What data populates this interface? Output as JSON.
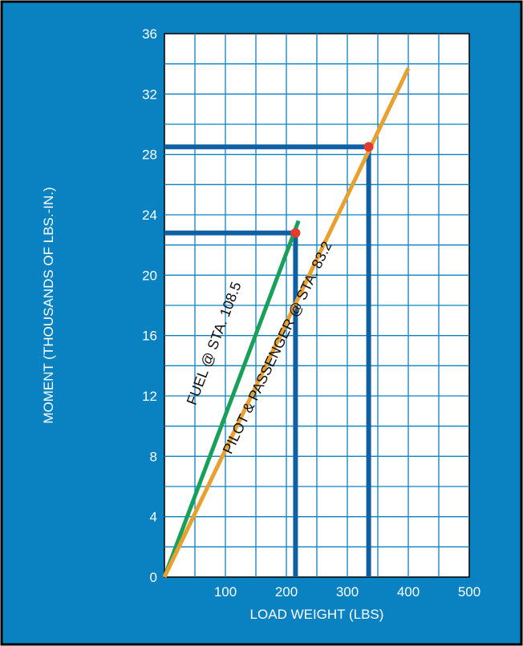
{
  "chart_data": {
    "type": "line",
    "xlabel": "LOAD WEIGHT (LBS)",
    "ylabel": "MOMENT (THOUSANDS OF LBS.-IN.)",
    "xlim": [
      0,
      500
    ],
    "ylim": [
      0,
      36
    ],
    "xticks": [
      100,
      200,
      300,
      400,
      500
    ],
    "yticks": [
      0,
      4,
      8,
      12,
      16,
      20,
      24,
      28,
      32,
      36
    ],
    "grid": true,
    "series": [
      {
        "name": "FUEL @ STA. 108.5",
        "color": "#18a05a",
        "x": [
          0,
          220
        ],
        "y": [
          0,
          23.6
        ]
      },
      {
        "name": "PILOT & PASSENGER @ STA. 83.2",
        "color": "#e8a030",
        "x": [
          0,
          400
        ],
        "y": [
          0,
          33.7
        ]
      }
    ],
    "annotations": [
      {
        "label": "fuel-reading",
        "x": 215,
        "y": 22.8
      },
      {
        "label": "pilot-passenger-reading",
        "x": 335,
        "y": 28.5
      }
    ]
  },
  "colors": {
    "frame": "#0a82c2",
    "grid": "#0a82c2",
    "reading_line": "#0e5fa3",
    "marker": "#e53a2e",
    "text": "#ffffff",
    "label_text": "#111111"
  }
}
